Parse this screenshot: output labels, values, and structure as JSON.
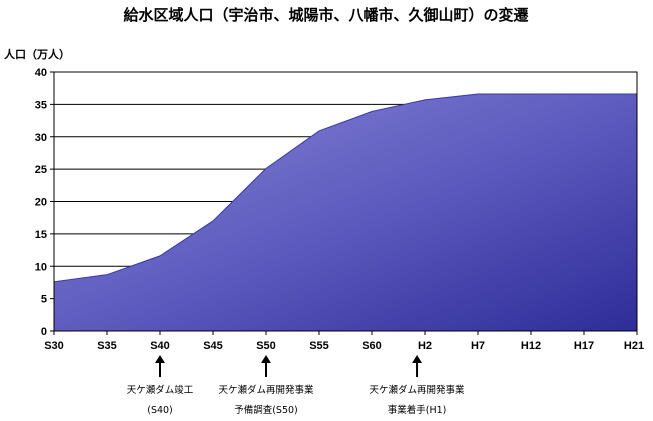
{
  "chart_data": {
    "type": "area",
    "title": "給水区域人口（宇治市、城陽市、八幡市、久御山町）の変遷",
    "ylabel": "人口（万人）",
    "xlabel": "",
    "ylim": [
      0,
      40
    ],
    "yticks": [
      "0",
      "5",
      "10",
      "15",
      "20",
      "25",
      "30",
      "35",
      "40"
    ],
    "categories": [
      "S30",
      "S35",
      "S40",
      "S45",
      "S50",
      "S55",
      "S60",
      "H2",
      "H7",
      "H12",
      "H17",
      "H21"
    ],
    "series": [
      {
        "values": [
          7.6,
          8.7,
          11.6,
          17.0,
          25.1,
          30.9,
          33.9,
          35.7,
          36.6,
          36.6,
          36.6,
          36.6
        ],
        "color": "#3a38a8"
      }
    ],
    "grid": true,
    "annotations": [
      {
        "after_category": "S35",
        "position_between": 1.0,
        "lines": [
          "天ケ瀬ダム竣工",
          "(S40)"
        ]
      },
      {
        "after_category": "S45",
        "position_between": 1.0,
        "lines": [
          "天ケ瀬ダム再開発事業",
          "予備調査(S50)"
        ]
      },
      {
        "after_category": "S60",
        "position_between": 0.85,
        "lines": [
          "天ケ瀬ダム再開発事業",
          "事業着手(H1)"
        ]
      }
    ]
  }
}
